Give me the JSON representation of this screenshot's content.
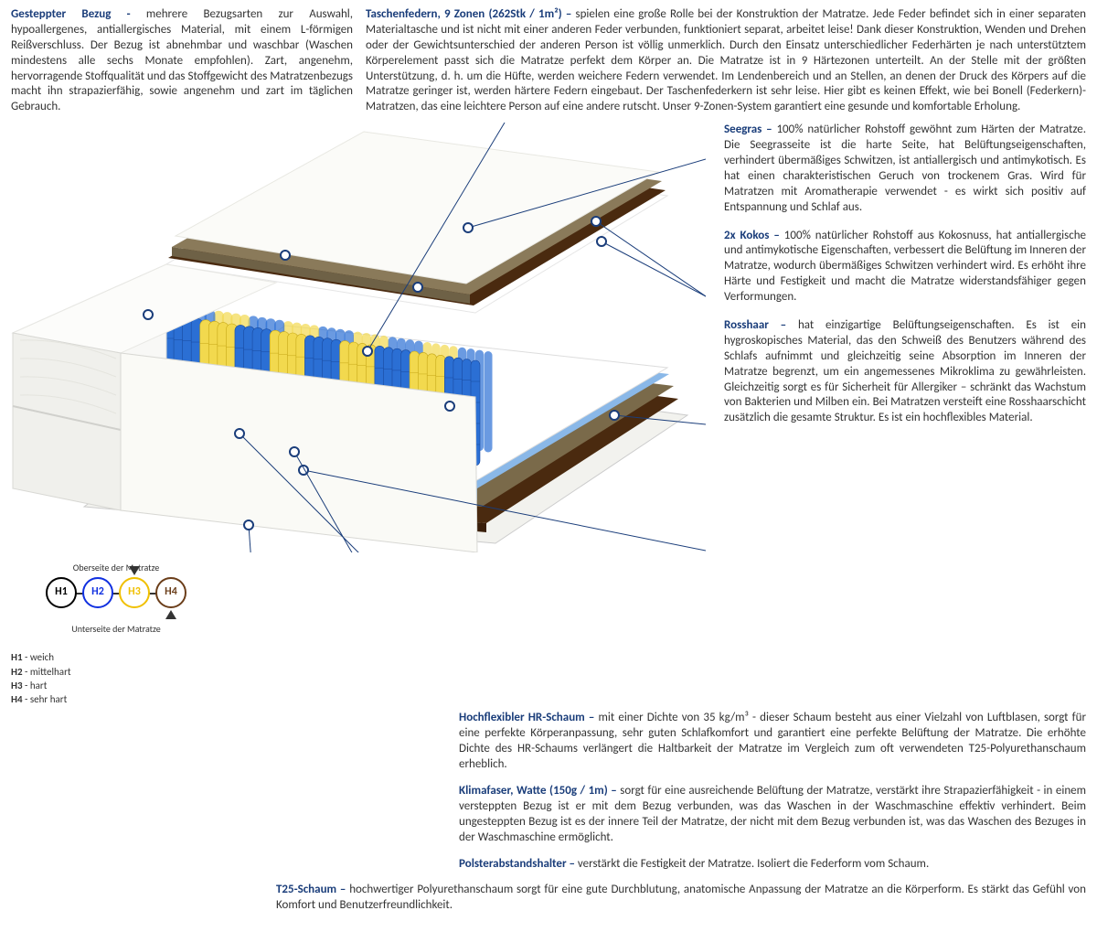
{
  "colors": {
    "heading": "#1a3d7a",
    "text": "#333333",
    "h1_circle": "#000000",
    "h2_circle": "#1030e0",
    "h3_circle": "#f0c000",
    "h4_circle": "#6b3e1a",
    "spring_blue": "#2b6fd4",
    "spring_blue_dark": "#1a4a9e",
    "spring_yellow": "#f2d94e",
    "spring_yellow_dark": "#c7a818",
    "kokos": "#4a2a0f",
    "seegras": "#8a7a5a",
    "rosshaar": "#7a6a4a",
    "foam_blue": "#8ab8e8",
    "foam_white": "#f5f5f5",
    "cover": "#f8f8f6",
    "cover_shadow": "#d8d8d4"
  },
  "top": {
    "left_heading": "Gesteppter Bezug - ",
    "left_body": "mehrere Bezugsarten zur Auswahl, hypoallergenes, antiallergisches Material, mit einem L-förmigen Reißverschluss. Der Bezug ist abnehmbar und waschbar (Waschen mindestens alle sechs Monate empfohlen). Zart, angenehm, hervorragende Stoffqualität und das Stoffgewicht des Matratzenbezugs macht ihn strapazierfähig, sowie angenehm und zart im täglichen Gebrauch.",
    "right_heading": "Taschenfedern, 9 Zonen (262Stk / 1m²) – ",
    "right_body": "spielen eine große Rolle bei der Konstruktion der Matratze. Jede Feder befindet sich in einer separaten Materialtasche und ist nicht mit einer anderen Feder verbunden, funktioniert separat, arbeitet leise! Dank dieser Konstruktion, Wenden und Drehen oder der Gewichtsunterschied der anderen Person ist völlig unmerklich. Durch den Einsatz unterschiedlicher Federhärten je nach unterstütztem Körperelement passt sich die Matratze perfekt dem Körper an. Die Matratze ist in 9 Härtezonen unterteilt. An der Stelle mit der größten Unterstützung, d. h. um die Hüfte, werden weichere Federn verwendet. Im Lendenbereich und an Stellen, an denen der Druck des Körpers auf die Matratze geringer ist, werden härtere Federn eingebaut. Der Taschenfederkern ist sehr leise. Hier gibt es keinen Effekt, wie bei Bonell (Federkern)- Matratzen, das eine leichtere Person auf eine andere rutscht. Unser 9-Zonen-System garantiert eine gesunde und komfortable Erholung."
  },
  "side": {
    "seegras_h": "Seegras – ",
    "seegras_b": "100% natürlicher Rohstoff gewöhnt zum Härten der Matratze. Die Seegrasseite ist die harte Seite, hat Belüftungseigenschaften, verhindert übermäßiges Schwitzen, ist antiallergisch und antimykotisch. Es hat einen charakteristischen Geruch von trockenem Gras. Wird für Matratzen mit Aromatherapie verwendet - es wirkt sich positiv auf Entspannung und Schlaf aus.",
    "kokos_h": "2x Kokos – ",
    "kokos_b": "100% natürlicher Rohstoff aus Kokosnuss, hat antiallergische und antimykotische Eigenschaften, verbessert die Belüftung im Inneren der Matratze, wodurch übermäßiges Schwitzen verhindert wird. Es erhöht ihre Härte und Festigkeit und macht die Matratze widerstandsfähiger gegen Verformungen.",
    "rosshaar_h": "Rosshaar – ",
    "rosshaar_b": "hat einzigartige Belüftungseigenschaften. Es ist ein hygroskopisches Material, das den Schweiß des Benutzers während des Schlafs aufnimmt und gleichzeitig seine Absorption im Inneren der Matratze begrenzt, um ein angemessenes Mikroklima zu gewährleisten. Gleichzeitig sorgt es für Sicherheit für Allergiker – schränkt das Wachstum von Bakterien und Milben ein. Bei Matratzen versteift eine Rosshaarschicht zusätzlich die gesamte Struktur. Es ist ein hochflexibles Material."
  },
  "below": {
    "hr_h": "Hochflexibler HR-Schaum – ",
    "hr_b": "mit einer Dichte von 35 kg/m³ - dieser Schaum besteht aus einer Vielzahl von Luftblasen, sorgt für eine perfekte Körperanpassung, sehr guten Schlafkomfort und garantiert eine perfekte Belüftung der Matratze. Die erhöhte Dichte des HR-Schaums verlängert die Haltbarkeit der Matratze im Vergleich zum oft verwendeten T25-Polyurethanschaum erheblich.",
    "klima_h": "Klimafaser, Watte (150g / 1m) – ",
    "klima_b": "sorgt für eine ausreichende Belüftung der Matratze, verstärkt ihre Strapazierfähigkeit - in einem versteppten Bezug ist er mit dem Bezug verbunden, was das Waschen in der Waschmaschine effektiv verhindert. Beim ungesteppten Bezug ist es der innere Teil der Matratze, der nicht mit dem Bezug verbunden ist, was das Waschen des Bezuges in der Waschmaschine ermöglicht.",
    "polster_h": "Polsterabstandshalter – ",
    "polster_b": "verstärkt die Festigkeit der Matratze. Isoliert die Federform vom Schaum.",
    "t25_h": "T25-Schaum – ",
    "t25_b": "hochwertiger Polyurethanschaum sorgt für eine gute Durchblutung, anatomische Anpassung der Matratze an die Körperform. Es stärkt das Gefühl von Komfort und Benutzerfreundlichkeit."
  },
  "firmness": {
    "top_label": "Oberseite der Matratze",
    "bottom_label": "Unterseite der Matratze",
    "items": [
      {
        "code": "H1",
        "color": "#000000"
      },
      {
        "code": "H2",
        "color": "#1030e0"
      },
      {
        "code": "H3",
        "color": "#f0c000"
      },
      {
        "code": "H4",
        "color": "#6b3e1a"
      }
    ],
    "legend": [
      {
        "code": "H1",
        "label": "weich"
      },
      {
        "code": "H2",
        "label": "mittelhart"
      },
      {
        "code": "H3",
        "label": "hart"
      },
      {
        "code": "H4",
        "label": "sehr hart"
      }
    ]
  },
  "zones": [
    "blue",
    "yellow",
    "blue",
    "yellow",
    "blue",
    "yellow",
    "blue",
    "yellow",
    "blue"
  ]
}
